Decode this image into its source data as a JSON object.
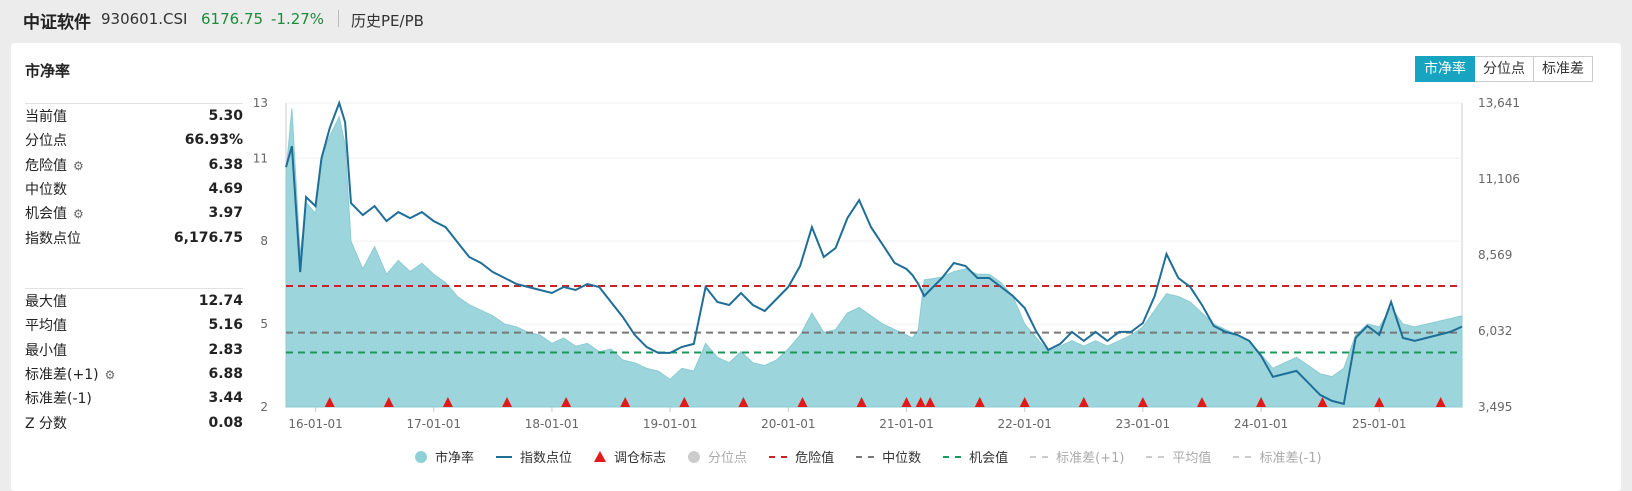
{
  "header": {
    "name": "中证软件",
    "code": "930601.CSI",
    "price": "6176.75",
    "change": "-1.27%",
    "history": "历史PE/PB"
  },
  "panel": {
    "title": "市净率",
    "tabs": [
      "市净率",
      "分位点",
      "标准差"
    ],
    "active_tab": "市净率"
  },
  "stats1": [
    {
      "label": "当前值",
      "value": "5.30",
      "gear": false
    },
    {
      "label": "分位点",
      "value": "66.93%",
      "gear": false
    },
    {
      "label": "危险值",
      "value": "6.38",
      "gear": true
    },
    {
      "label": "中位数",
      "value": "4.69",
      "gear": false
    },
    {
      "label": "机会值",
      "value": "3.97",
      "gear": true
    },
    {
      "label": "指数点位",
      "value": "6,176.75",
      "gear": false
    }
  ],
  "stats2": [
    {
      "label": "最大值",
      "value": "12.74",
      "gear": false
    },
    {
      "label": "平均值",
      "value": "5.16",
      "gear": false
    },
    {
      "label": "最小值",
      "value": "2.83",
      "gear": false
    },
    {
      "label": "标准差(+1)",
      "value": "6.88",
      "gear": true
    },
    {
      "label": "标准差(-1)",
      "value": "3.44",
      "gear": false
    },
    {
      "label": "Z 分数",
      "value": "0.08",
      "gear": false
    }
  ],
  "legend": [
    {
      "label": "市净率",
      "kind": "dot",
      "color": "#8fd0d8",
      "dim": false
    },
    {
      "label": "指数点位",
      "kind": "line",
      "color": "#1f6e97",
      "dim": false
    },
    {
      "label": "调仓标志",
      "kind": "tri",
      "color": "#e11919",
      "dim": false
    },
    {
      "label": "分位点",
      "kind": "dot",
      "color": "#cccccc",
      "dim": true
    },
    {
      "label": "危险值",
      "kind": "dash",
      "color": "#cc2222",
      "dim": false
    },
    {
      "label": "中位数",
      "kind": "dash",
      "color": "#777777",
      "dim": false
    },
    {
      "label": "机会值",
      "kind": "dash",
      "color": "#1a9a5a",
      "dim": false
    },
    {
      "label": "标准差(+1)",
      "kind": "dash",
      "color": "#cccccc",
      "dim": true
    },
    {
      "label": "平均值",
      "kind": "dash",
      "color": "#cccccc",
      "dim": true
    },
    {
      "label": "标准差(-1)",
      "kind": "dash",
      "color": "#cccccc",
      "dim": true
    }
  ],
  "chart_data": {
    "type": "area",
    "left_axis": {
      "ticks": [
        2,
        5,
        8,
        11,
        13
      ],
      "range": [
        2,
        13
      ]
    },
    "right_axis": {
      "ticks": [
        "3,495",
        "6,032",
        "8,569",
        "11,106",
        "13,641"
      ],
      "range": [
        3495,
        13641
      ]
    },
    "x_ticks": [
      "16-01-01",
      "17-01-01",
      "18-01-01",
      "19-01-01",
      "20-01-01",
      "21-01-01",
      "22-01-01",
      "23-01-01",
      "24-01-01",
      "25-01-01"
    ],
    "x_range": [
      2015.75,
      2025.7
    ],
    "reference_lines": [
      {
        "name": "危险值",
        "value": 6.38,
        "color": "#cc2222"
      },
      {
        "name": "中位数",
        "value": 4.69,
        "color": "#777777"
      },
      {
        "name": "机会值",
        "value": 3.97,
        "color": "#1a9a5a"
      }
    ],
    "pb_series": {
      "name": "市净率",
      "color": "#8fd0d8",
      "points": [
        [
          2015.75,
          10.5
        ],
        [
          2015.8,
          12.8
        ],
        [
          2015.87,
          7.5
        ],
        [
          2015.92,
          9.4
        ],
        [
          2016.0,
          9.0
        ],
        [
          2016.05,
          11.0
        ],
        [
          2016.12,
          11.8
        ],
        [
          2016.2,
          12.5
        ],
        [
          2016.25,
          11.5
        ],
        [
          2016.3,
          8.0
        ],
        [
          2016.4,
          7.0
        ],
        [
          2016.5,
          7.8
        ],
        [
          2016.6,
          6.8
        ],
        [
          2016.7,
          7.3
        ],
        [
          2016.8,
          6.9
        ],
        [
          2016.9,
          7.2
        ],
        [
          2017.0,
          6.8
        ],
        [
          2017.1,
          6.5
        ],
        [
          2017.2,
          6.0
        ],
        [
          2017.3,
          5.7
        ],
        [
          2017.4,
          5.5
        ],
        [
          2017.5,
          5.3
        ],
        [
          2017.6,
          5.0
        ],
        [
          2017.7,
          4.9
        ],
        [
          2017.8,
          4.7
        ],
        [
          2017.9,
          4.6
        ],
        [
          2018.0,
          4.3
        ],
        [
          2018.1,
          4.5
        ],
        [
          2018.2,
          4.2
        ],
        [
          2018.3,
          4.3
        ],
        [
          2018.4,
          4.0
        ],
        [
          2018.5,
          4.1
        ],
        [
          2018.6,
          3.7
        ],
        [
          2018.7,
          3.6
        ],
        [
          2018.8,
          3.4
        ],
        [
          2018.9,
          3.3
        ],
        [
          2019.0,
          3.0
        ],
        [
          2019.1,
          3.4
        ],
        [
          2019.2,
          3.3
        ],
        [
          2019.3,
          4.3
        ],
        [
          2019.4,
          3.8
        ],
        [
          2019.5,
          3.6
        ],
        [
          2019.6,
          4.0
        ],
        [
          2019.7,
          3.6
        ],
        [
          2019.8,
          3.5
        ],
        [
          2019.9,
          3.7
        ],
        [
          2020.0,
          4.1
        ],
        [
          2020.1,
          4.6
        ],
        [
          2020.2,
          5.4
        ],
        [
          2020.3,
          4.7
        ],
        [
          2020.4,
          4.8
        ],
        [
          2020.5,
          5.4
        ],
        [
          2020.6,
          5.6
        ],
        [
          2020.7,
          5.3
        ],
        [
          2020.8,
          5.0
        ],
        [
          2020.9,
          4.8
        ],
        [
          2021.0,
          4.6
        ],
        [
          2021.05,
          4.5
        ],
        [
          2021.1,
          4.8
        ],
        [
          2021.15,
          6.6
        ],
        [
          2021.3,
          6.7
        ],
        [
          2021.4,
          6.9
        ],
        [
          2021.5,
          7.0
        ],
        [
          2021.6,
          6.8
        ],
        [
          2021.7,
          6.8
        ],
        [
          2021.8,
          6.5
        ],
        [
          2021.9,
          6.0
        ],
        [
          2022.0,
          5.0
        ],
        [
          2022.1,
          4.5
        ],
        [
          2022.2,
          4.0
        ],
        [
          2022.3,
          4.2
        ],
        [
          2022.4,
          4.4
        ],
        [
          2022.5,
          4.2
        ],
        [
          2022.6,
          4.4
        ],
        [
          2022.7,
          4.2
        ],
        [
          2022.8,
          4.4
        ],
        [
          2022.9,
          4.6
        ],
        [
          2023.0,
          4.9
        ],
        [
          2023.1,
          5.5
        ],
        [
          2023.2,
          6.1
        ],
        [
          2023.3,
          6.0
        ],
        [
          2023.4,
          5.8
        ],
        [
          2023.5,
          5.4
        ],
        [
          2023.6,
          5.0
        ],
        [
          2023.7,
          4.8
        ],
        [
          2023.8,
          4.6
        ],
        [
          2023.9,
          4.4
        ],
        [
          2024.0,
          3.9
        ],
        [
          2024.1,
          3.4
        ],
        [
          2024.2,
          3.6
        ],
        [
          2024.3,
          3.8
        ],
        [
          2024.4,
          3.5
        ],
        [
          2024.5,
          3.2
        ],
        [
          2024.6,
          3.1
        ],
        [
          2024.7,
          3.4
        ],
        [
          2024.8,
          4.6
        ],
        [
          2024.9,
          5.0
        ],
        [
          2025.0,
          4.9
        ],
        [
          2025.1,
          5.6
        ],
        [
          2025.2,
          5.0
        ],
        [
          2025.3,
          4.9
        ],
        [
          2025.4,
          5.0
        ],
        [
          2025.5,
          5.1
        ],
        [
          2025.6,
          5.2
        ],
        [
          2025.7,
          5.3
        ]
      ]
    },
    "index_series": {
      "name": "指数点位",
      "color": "#1f6e97",
      "points": [
        [
          2015.75,
          11500
        ],
        [
          2015.8,
          12200
        ],
        [
          2015.87,
          8000
        ],
        [
          2015.92,
          10500
        ],
        [
          2016.0,
          10200
        ],
        [
          2016.05,
          11800
        ],
        [
          2016.12,
          12800
        ],
        [
          2016.2,
          13641
        ],
        [
          2016.25,
          13000
        ],
        [
          2016.3,
          10300
        ],
        [
          2016.4,
          9900
        ],
        [
          2016.5,
          10200
        ],
        [
          2016.6,
          9700
        ],
        [
          2016.7,
          10000
        ],
        [
          2016.8,
          9800
        ],
        [
          2016.9,
          10000
        ],
        [
          2017.0,
          9700
        ],
        [
          2017.1,
          9500
        ],
        [
          2017.2,
          9000
        ],
        [
          2017.3,
          8500
        ],
        [
          2017.4,
          8300
        ],
        [
          2017.5,
          8000
        ],
        [
          2017.6,
          7800
        ],
        [
          2017.7,
          7600
        ],
        [
          2017.8,
          7500
        ],
        [
          2017.9,
          7400
        ],
        [
          2018.0,
          7300
        ],
        [
          2018.1,
          7500
        ],
        [
          2018.2,
          7400
        ],
        [
          2018.3,
          7600
        ],
        [
          2018.4,
          7500
        ],
        [
          2018.5,
          7000
        ],
        [
          2018.6,
          6500
        ],
        [
          2018.7,
          5900
        ],
        [
          2018.8,
          5500
        ],
        [
          2018.9,
          5300
        ],
        [
          2019.0,
          5300
        ],
        [
          2019.1,
          5500
        ],
        [
          2019.2,
          5600
        ],
        [
          2019.3,
          7500
        ],
        [
          2019.4,
          7000
        ],
        [
          2019.5,
          6900
        ],
        [
          2019.6,
          7300
        ],
        [
          2019.7,
          6900
        ],
        [
          2019.8,
          6700
        ],
        [
          2019.9,
          7100
        ],
        [
          2020.0,
          7500
        ],
        [
          2020.1,
          8200
        ],
        [
          2020.2,
          9500
        ],
        [
          2020.3,
          8500
        ],
        [
          2020.4,
          8800
        ],
        [
          2020.5,
          9800
        ],
        [
          2020.6,
          10400
        ],
        [
          2020.7,
          9500
        ],
        [
          2020.8,
          8900
        ],
        [
          2020.9,
          8300
        ],
        [
          2021.0,
          8100
        ],
        [
          2021.05,
          7900
        ],
        [
          2021.1,
          7600
        ],
        [
          2021.15,
          7200
        ],
        [
          2021.3,
          7800
        ],
        [
          2021.4,
          8300
        ],
        [
          2021.5,
          8200
        ],
        [
          2021.6,
          7800
        ],
        [
          2021.7,
          7800
        ],
        [
          2021.8,
          7500
        ],
        [
          2021.9,
          7200
        ],
        [
          2022.0,
          6800
        ],
        [
          2022.1,
          6000
        ],
        [
          2022.2,
          5400
        ],
        [
          2022.3,
          5600
        ],
        [
          2022.4,
          6000
        ],
        [
          2022.5,
          5700
        ],
        [
          2022.6,
          6000
        ],
        [
          2022.7,
          5700
        ],
        [
          2022.8,
          6000
        ],
        [
          2022.9,
          6000
        ],
        [
          2023.0,
          6300
        ],
        [
          2023.1,
          7200
        ],
        [
          2023.2,
          8600
        ],
        [
          2023.3,
          7800
        ],
        [
          2023.4,
          7500
        ],
        [
          2023.5,
          6900
        ],
        [
          2023.6,
          6200
        ],
        [
          2023.7,
          6000
        ],
        [
          2023.8,
          5900
        ],
        [
          2023.9,
          5700
        ],
        [
          2024.0,
          5200
        ],
        [
          2024.1,
          4500
        ],
        [
          2024.2,
          4600
        ],
        [
          2024.3,
          4700
        ],
        [
          2024.4,
          4300
        ],
        [
          2024.5,
          3900
        ],
        [
          2024.6,
          3700
        ],
        [
          2024.7,
          3600
        ],
        [
          2024.8,
          5800
        ],
        [
          2024.9,
          6200
        ],
        [
          2025.0,
          5900
        ],
        [
          2025.1,
          7000
        ],
        [
          2025.2,
          5800
        ],
        [
          2025.3,
          5700
        ],
        [
          2025.4,
          5800
        ],
        [
          2025.5,
          5900
        ],
        [
          2025.6,
          6000
        ],
        [
          2025.7,
          6177
        ]
      ]
    },
    "rebalance_markers": [
      2016.12,
      2016.62,
      2017.12,
      2017.62,
      2018.12,
      2018.62,
      2019.12,
      2019.62,
      2020.12,
      2020.62,
      2021.0,
      2021.12,
      2021.2,
      2021.62,
      2022.0,
      2022.5,
      2023.0,
      2023.5,
      2024.0,
      2024.52,
      2025.0,
      2025.52
    ]
  }
}
